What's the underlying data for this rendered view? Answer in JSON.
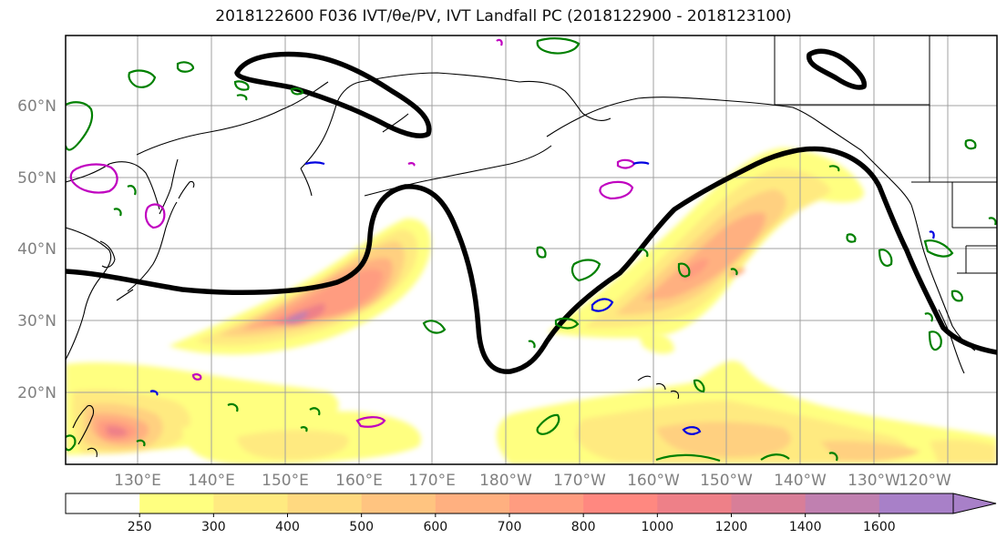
{
  "title": "2018122600 F036 IVT/θe/PV, IVT Landfall PC (2018122900 - 2018123100)",
  "map": {
    "lat_labels": [
      "60°N",
      "50°N",
      "40°N",
      "30°N",
      "20°N"
    ],
    "lon_labels": [
      "130°E",
      "140°E",
      "150°E",
      "160°E",
      "170°E",
      "180°W",
      "170°W",
      "160°W",
      "150°W",
      "140°W",
      "130°W",
      "120°W"
    ],
    "gridlines": true,
    "colors": {
      "dynamic_tropopause_contour": "#000000",
      "theta_e_contour": "#008000",
      "pv_contour_magenta": "#c000c0",
      "pv_contour_blue": "#0000e0",
      "coastlines": "#000000"
    }
  },
  "colorbar": {
    "levels": [
      "250",
      "300",
      "400",
      "500",
      "600",
      "700",
      "800",
      "1000",
      "1200",
      "1400",
      "1600"
    ],
    "colors": [
      "#ffffff",
      "#ffff80",
      "#ffea80",
      "#ffd980",
      "#ffc480",
      "#ffb080",
      "#ff9c80",
      "#ff8880",
      "#ee8088",
      "#d87e98",
      "#c080b0",
      "#a880c8"
    ],
    "extend": "max"
  }
}
